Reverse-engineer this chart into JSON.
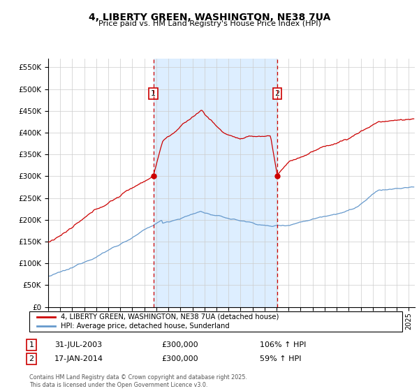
{
  "title": "4, LIBERTY GREEN, WASHINGTON, NE38 7UA",
  "subtitle": "Price paid vs. HM Land Registry's House Price Index (HPI)",
  "ylabel_ticks": [
    0,
    50000,
    100000,
    150000,
    200000,
    250000,
    300000,
    350000,
    400000,
    450000,
    500000,
    550000
  ],
  "ylim": [
    0,
    570000
  ],
  "xlim_start": 1995.0,
  "xlim_end": 2025.5,
  "sale1_date": 2003.75,
  "sale1_price": 300000,
  "sale2_date": 2014.05,
  "sale2_price": 300000,
  "red_line_color": "#cc0000",
  "blue_line_color": "#6699cc",
  "dashed_color": "#cc0000",
  "grid_color": "#cccccc",
  "chart_bg": "#ffffff",
  "shade_color": "#ddeeff",
  "fig_bg": "#ffffff",
  "legend_line1": "4, LIBERTY GREEN, WASHINGTON, NE38 7UA (detached house)",
  "legend_line2": "HPI: Average price, detached house, Sunderland",
  "annot1_label": "1",
  "annot1_date": "31-JUL-2003",
  "annot1_price": "£300,000",
  "annot1_hpi": "106% ↑ HPI",
  "annot2_label": "2",
  "annot2_date": "17-JAN-2014",
  "annot2_price": "£300,000",
  "annot2_hpi": "59% ↑ HPI",
  "footer": "Contains HM Land Registry data © Crown copyright and database right 2025.\nThis data is licensed under the Open Government Licence v3.0."
}
